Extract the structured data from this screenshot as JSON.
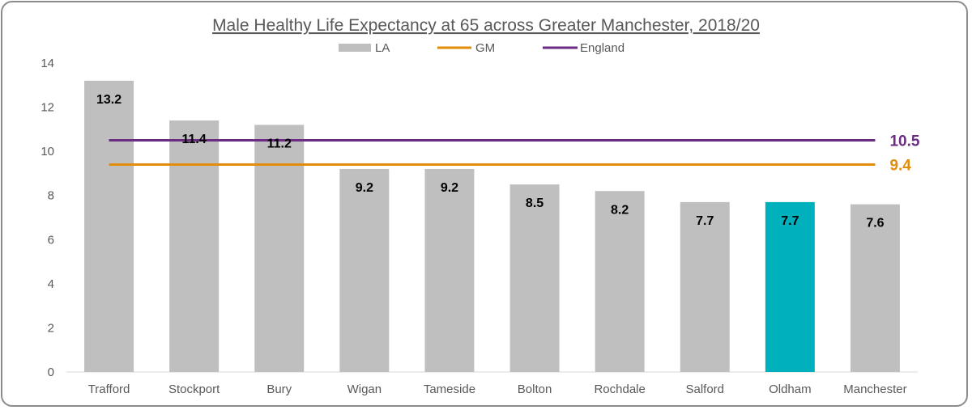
{
  "chart_data": {
    "type": "bar",
    "title": "Male Healthy Life Expectancy at 65 across Greater Manchester, 2018/20",
    "xlabel": "",
    "ylabel": "",
    "ylim": [
      0,
      14
    ],
    "yticks": [
      0,
      2,
      4,
      6,
      8,
      10,
      12,
      14
    ],
    "categories": [
      "Trafford",
      "Stockport",
      "Bury",
      "Wigan",
      "Tameside",
      "Bolton",
      "Rochdale",
      "Salford",
      "Oldham",
      "Manchester"
    ],
    "series": [
      {
        "name": "LA",
        "values": [
          13.2,
          11.4,
          11.2,
          9.2,
          9.2,
          8.5,
          8.2,
          7.7,
          7.7,
          7.6
        ],
        "labels": [
          "13.2",
          "11.4",
          "11.2",
          "9.2",
          "9.2",
          "8.5",
          "8.2",
          "7.7",
          "7.7",
          "7.6"
        ],
        "color": "#bfbfbf",
        "highlight_category": "Oldham",
        "highlight_color": "#00b0bd"
      }
    ],
    "reference_lines": [
      {
        "name": "GM",
        "value": 9.4,
        "label": "9.4",
        "color": "#e28c0a"
      },
      {
        "name": "England",
        "value": 10.5,
        "label": "10.5",
        "color": "#6d2c83"
      }
    ],
    "legend": {
      "placement": "top",
      "entries": [
        "LA",
        "GM",
        "England"
      ]
    },
    "grid": false
  }
}
